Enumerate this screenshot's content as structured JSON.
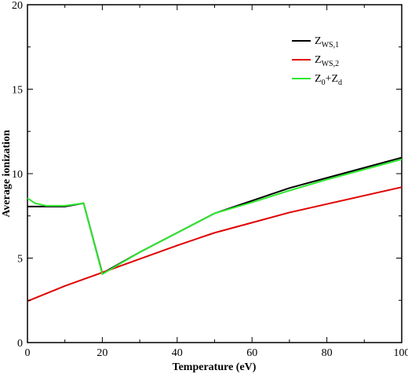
{
  "chart_data": {
    "type": "line",
    "title": "",
    "xlabel": "Temperature (eV)",
    "ylabel": "Average ionization",
    "xlim": [
      0,
      100
    ],
    "ylim": [
      0,
      20
    ],
    "xticks": [
      0,
      20,
      40,
      60,
      80,
      100
    ],
    "yticks": [
      0,
      5,
      10,
      15,
      20
    ],
    "grid": false,
    "legend_position": "top-right",
    "series": [
      {
        "name": "Z",
        "name_sub": "WS,1",
        "color": "#000000",
        "x": [
          0,
          5,
          10,
          15,
          20,
          30,
          40,
          50,
          60,
          70,
          80,
          90,
          100
        ],
        "y": [
          8.05,
          8.05,
          8.05,
          8.25,
          4.1,
          5.35,
          6.5,
          7.65,
          8.4,
          9.15,
          9.75,
          10.35,
          10.95
        ]
      },
      {
        "name": "Z",
        "name_sub": "WS,2",
        "color": "#e00000",
        "x": [
          0,
          10,
          20,
          30,
          40,
          50,
          60,
          70,
          80,
          90,
          100
        ],
        "y": [
          2.45,
          3.35,
          4.15,
          4.95,
          5.75,
          6.5,
          7.1,
          7.7,
          8.2,
          8.7,
          9.2
        ]
      },
      {
        "name": "Z0+Zd",
        "name_parts": [
          {
            "text": "Z",
            "sub": false
          },
          {
            "text": "0",
            "sub": true
          },
          {
            "text": "+Z",
            "sub": false
          },
          {
            "text": "d",
            "sub": true
          }
        ],
        "color": "#2ee82e",
        "x": [
          0,
          2,
          5,
          10,
          15,
          20,
          30,
          40,
          50,
          60,
          70,
          80,
          90,
          100
        ],
        "y": [
          8.55,
          8.25,
          8.1,
          8.1,
          8.25,
          4.05,
          5.35,
          6.5,
          7.65,
          8.3,
          9.0,
          9.65,
          10.25,
          10.85
        ]
      }
    ]
  }
}
